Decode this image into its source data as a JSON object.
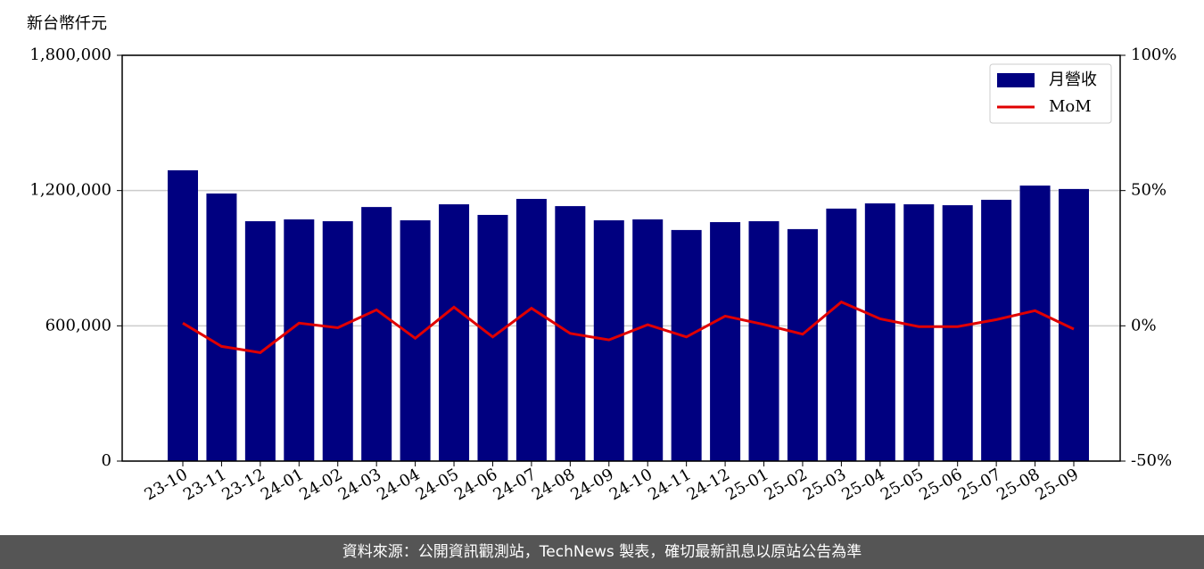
{
  "chart_data": {
    "type": "bar+line",
    "y_label": "新台幣仟元",
    "categories": [
      "23-10",
      "23-11",
      "23-12",
      "24-01",
      "24-02",
      "24-03",
      "24-04",
      "24-05",
      "24-06",
      "24-07",
      "24-08",
      "24-09",
      "24-10",
      "24-11",
      "24-12",
      "25-01",
      "25-02",
      "25-03",
      "25-04",
      "25-05",
      "25-06",
      "25-07",
      "25-08",
      "25-09"
    ],
    "series": [
      {
        "name": "月營收",
        "type": "bar",
        "color": "#000080",
        "values": [
          1290000,
          1187000,
          1064000,
          1072000,
          1064000,
          1127000,
          1068000,
          1139000,
          1092000,
          1163000,
          1131000,
          1068000,
          1072000,
          1025000,
          1060000,
          1064000,
          1029000,
          1120000,
          1143000,
          1139000,
          1135000,
          1159000,
          1222000,
          1207000
        ]
      },
      {
        "name": "MoM",
        "type": "line",
        "axis": "y2",
        "color": "#e00000",
        "values": [
          1.0,
          -7.6,
          -9.9,
          1.0,
          -0.7,
          5.9,
          -4.6,
          6.9,
          -4.1,
          6.5,
          -2.8,
          -5.2,
          0.4,
          -4.1,
          3.6,
          0.5,
          -3.1,
          8.8,
          2.6,
          -0.3,
          -0.3,
          2.3,
          5.6,
          -1.2
        ]
      }
    ],
    "ylim": [
      0,
      1800000
    ],
    "yticks": [
      0,
      {
        "value": 600000,
        "label": "600,000"
      },
      {
        "value": 1200000,
        "label": "1,200,000"
      },
      {
        "value": 1800000,
        "label": "1,800,000"
      }
    ],
    "y2lim": [
      -50,
      100
    ],
    "y2ticks": [
      {
        "value": -50,
        "label": "-50%"
      },
      {
        "value": 0,
        "label": "0%"
      },
      {
        "value": 50,
        "label": "50%"
      },
      {
        "value": 100,
        "label": "100%"
      }
    ],
    "grid": true,
    "legend": "upper right",
    "footer": "資料來源：公開資訊觀測站，TechNews 製表，確切最新訊息以原站公告為準"
  }
}
